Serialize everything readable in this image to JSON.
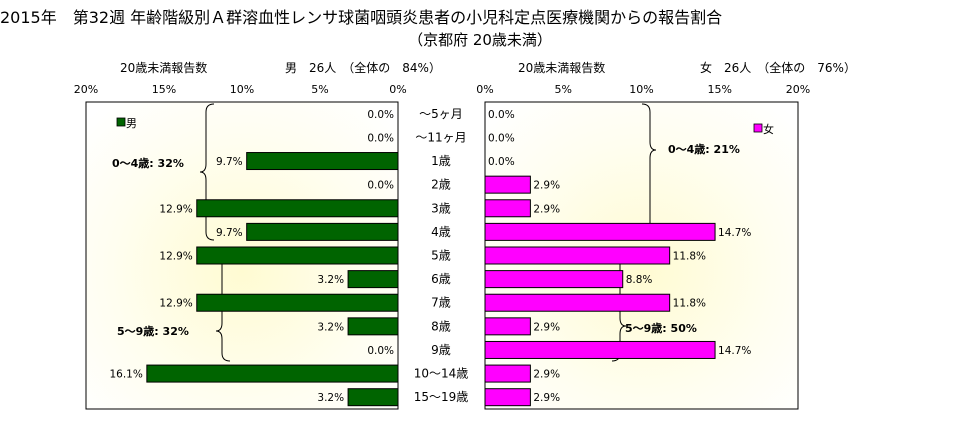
{
  "title": {
    "line1": "2015年　第32週 年齢階級別Ａ群溶血性レンサ球菌咽頭炎患者の小児科定点医療機関からの報告割合",
    "line2": "（京都府 20歳未満）"
  },
  "chart_data": [
    {
      "type": "bar",
      "orientation": "horizontal",
      "axis_direction": "reversed",
      "header_left": "20歳未満報告数",
      "header_right": "男　26人　（全体の　84%）",
      "legend": "男",
      "legend_position": "top-left",
      "color": "#006400",
      "xlim": [
        0,
        20
      ],
      "xticks": [
        "20%",
        "15%",
        "10%",
        "5%",
        "0%"
      ],
      "categories": [
        "～5ヶ月",
        "～11ヶ月",
        "1歳",
        "2歳",
        "3歳",
        "4歳",
        "5歳",
        "6歳",
        "7歳",
        "8歳",
        "9歳",
        "10～14歳",
        "15～19歳"
      ],
      "values": [
        0.0,
        0.0,
        9.7,
        0.0,
        12.9,
        9.7,
        12.9,
        3.2,
        12.9,
        3.2,
        0.0,
        16.1,
        3.2
      ],
      "value_labels": [
        "0.0%",
        "0.0%",
        "9.7%",
        "0.0%",
        "12.9%",
        "9.7%",
        "12.9%",
        "3.2%",
        "12.9%",
        "3.2%",
        "0.0%",
        "16.1%",
        "3.2%"
      ],
      "annotations": [
        {
          "text": "0～4歳: 32%"
        },
        {
          "text": "5～9歳: 32%"
        }
      ]
    },
    {
      "type": "bar",
      "orientation": "horizontal",
      "header_left": "20歳未満報告数",
      "header_right": "女　26人　（全体の　76%）",
      "legend": "女",
      "legend_position": "top-right",
      "color": "#ff00ff",
      "xlim": [
        0,
        20
      ],
      "xticks": [
        "0%",
        "5%",
        "10%",
        "15%",
        "20%"
      ],
      "categories": [
        "～5ヶ月",
        "～11ヶ月",
        "1歳",
        "2歳",
        "3歳",
        "4歳",
        "5歳",
        "6歳",
        "7歳",
        "8歳",
        "9歳",
        "10～14歳",
        "15～19歳"
      ],
      "values": [
        0.0,
        0.0,
        0.0,
        2.9,
        2.9,
        14.7,
        11.8,
        8.8,
        11.8,
        2.9,
        14.7,
        2.9,
        2.9
      ],
      "value_labels": [
        "0.0%",
        "0.0%",
        "0.0%",
        "2.9%",
        "2.9%",
        "14.7%",
        "11.8%",
        "8.8%",
        "11.8%",
        "2.9%",
        "14.7%",
        "2.9%",
        "2.9%"
      ],
      "annotations": [
        {
          "text": "0～4歳: 21%"
        },
        {
          "text": "5～9歳: 50%"
        }
      ]
    }
  ]
}
